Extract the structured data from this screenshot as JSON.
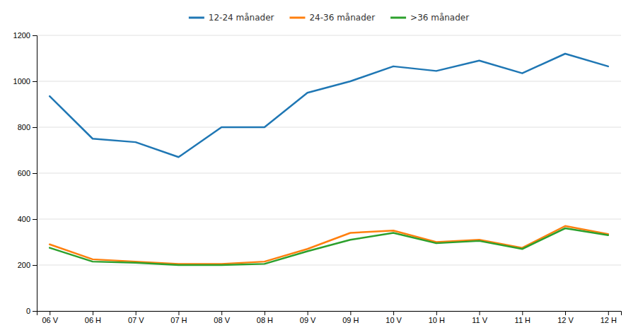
{
  "chart_data": {
    "type": "line",
    "categories": [
      "06 V",
      "06 H",
      "07 V",
      "07 H",
      "08 V",
      "08 H",
      "09 V",
      "09 H",
      "10 V",
      "10 H",
      "11 V",
      "11 H",
      "12 V",
      "12 H"
    ],
    "series": [
      {
        "name": "12-24 månader",
        "values": [
          935,
          750,
          735,
          670,
          800,
          800,
          950,
          1000,
          1065,
          1045,
          1090,
          1035,
          1120,
          1065
        ]
      },
      {
        "name": "24-36 månader",
        "values": [
          290,
          225,
          215,
          205,
          205,
          215,
          270,
          340,
          350,
          300,
          310,
          275,
          370,
          335
        ]
      },
      {
        "name": ">36 månader",
        "values": [
          275,
          215,
          210,
          200,
          200,
          205,
          260,
          310,
          340,
          295,
          305,
          270,
          360,
          330
        ]
      }
    ],
    "ylim": [
      0,
      1200
    ],
    "yticks": [
      0,
      200,
      400,
      600,
      800,
      1000,
      1200
    ],
    "grid": true,
    "legend": "top"
  }
}
